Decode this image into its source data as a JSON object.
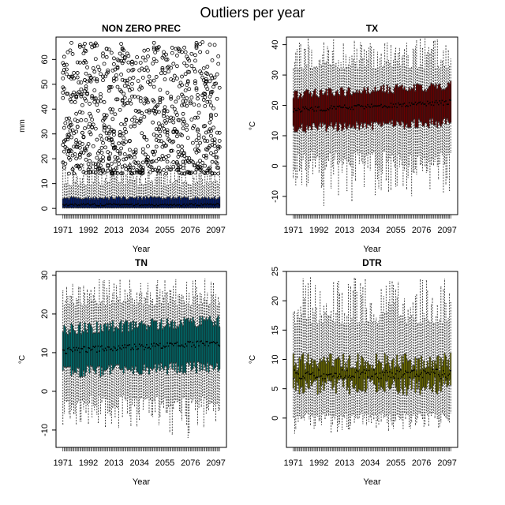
{
  "page": {
    "title": "Outliers per year"
  },
  "chart_data": [
    {
      "type": "boxplot",
      "title": "NON ZERO PREC",
      "xlabel": "Year",
      "ylabel": "mm",
      "x_tick_labels": [
        "1971",
        "1992",
        "2013",
        "2034",
        "2055",
        "2076",
        "2097"
      ],
      "x_range": [
        1971,
        2100
      ],
      "yticks": [
        0,
        10,
        20,
        30,
        40,
        50,
        60
      ],
      "ylim": [
        -2.5,
        69
      ],
      "box_color": "#001a6e",
      "series": {
        "name": "",
        "median_start": 1.5,
        "median_end": 1.5,
        "q1": 0.4,
        "q3": 4.0,
        "whisker_low": 0.1,
        "whisker_high": 13.5,
        "whisker_high_range": [
          9,
          19
        ]
      },
      "outliers": {
        "min": 12,
        "max": 67,
        "per_year_approx": 11,
        "shown_as": "open circles"
      }
    },
    {
      "type": "boxplot",
      "title": "TX",
      "xlabel": "Year",
      "ylabel": "°C",
      "x_tick_labels": [
        "1971",
        "1992",
        "2013",
        "2034",
        "2055",
        "2076",
        "2097"
      ],
      "x_range": [
        1971,
        2100
      ],
      "yticks": [
        -10,
        0,
        10,
        20,
        30,
        40
      ],
      "ylim": [
        -16,
        42.5
      ],
      "box_color": "#6b0000",
      "series": {
        "name": "",
        "median_start": 18.5,
        "median_end": 21.0,
        "q1_start": 12.5,
        "q1_end": 14.5,
        "q3_start": 23.5,
        "q3_end": 26.5,
        "whisker_low_range": [
          -14,
          5
        ],
        "whisker_high_range": [
          32,
          42
        ]
      }
    },
    {
      "type": "boxplot",
      "title": "TN",
      "xlabel": "Year",
      "ylabel": "°C",
      "x_tick_labels": [
        "1971",
        "1992",
        "2013",
        "2034",
        "2055",
        "2076",
        "2097"
      ],
      "x_range": [
        1971,
        2100
      ],
      "yticks": [
        -10,
        0,
        10,
        20,
        30
      ],
      "ylim": [
        -14.5,
        31
      ],
      "box_color": "#007070",
      "series": {
        "name": "",
        "median_start": 10.5,
        "median_end": 12.5,
        "q1_start": 5.0,
        "q1_end": 6.5,
        "q3_start": 16.0,
        "q3_end": 18.0,
        "whisker_low_range": [
          -13,
          -1
        ],
        "whisker_high_range": [
          22,
          29
        ]
      }
    },
    {
      "type": "boxplot",
      "title": "DTR",
      "xlabel": "Year",
      "ylabel": "°C",
      "x_tick_labels": [
        "1971",
        "1992",
        "2013",
        "2034",
        "2055",
        "2076",
        "2097"
      ],
      "x_range": [
        1971,
        2100
      ],
      "yticks": [
        0,
        5,
        10,
        15,
        20,
        25
      ],
      "ylim": [
        -5,
        25
      ],
      "box_color": "#707000",
      "series": {
        "name": "",
        "median_start": 7.5,
        "median_end": 7.5,
        "q1_start": 5.5,
        "q1_end": 5.5,
        "q3_start": 9.5,
        "q3_end": 9.5,
        "whisker_low_range": [
          -3,
          1
        ],
        "whisker_high_range": [
          16,
          24
        ]
      }
    }
  ]
}
